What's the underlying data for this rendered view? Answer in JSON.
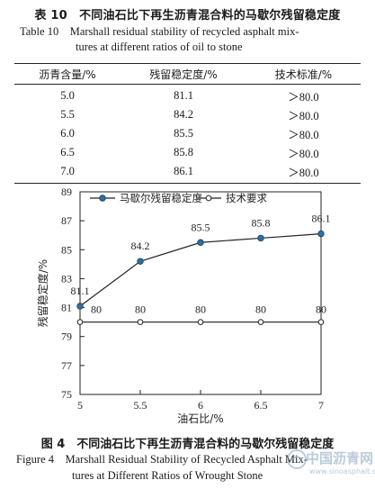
{
  "table": {
    "caption_cn": "表 10　不同油石比下再生沥青混合料的马歇尔残留稳定度",
    "caption_en_line1": "Table 10　Marshall residual stability of recycled asphalt mix-",
    "caption_en_line2": "tures at different ratios of oil to stone",
    "headers": [
      "沥青含量/%",
      "残留稳定度/%",
      "技术标准/%"
    ],
    "rows": [
      [
        "5.0",
        "81.1",
        "＞80.0"
      ],
      [
        "5.5",
        "84.2",
        "＞80.0"
      ],
      [
        "6.0",
        "85.5",
        "＞80.0"
      ],
      [
        "6.5",
        "85.8",
        "＞80.0"
      ],
      [
        "7.0",
        "86.1",
        "＞80.0"
      ]
    ]
  },
  "chart_data": {
    "type": "line",
    "x": [
      5,
      5.5,
      6,
      6.5,
      7
    ],
    "series": [
      {
        "name": "马歇尔残留稳定度",
        "values": [
          81.1,
          84.2,
          85.5,
          85.8,
          86.1
        ],
        "marker": "circle",
        "color": "#2f6f9f"
      },
      {
        "name": "技术要求",
        "values": [
          80,
          80,
          80,
          80,
          80
        ],
        "marker": "open-circle",
        "color": "#333333"
      }
    ],
    "data_labels_main": [
      "81.1",
      "84.2",
      "85.5",
      "85.8",
      "86.1"
    ],
    "data_labels_req": [
      "80",
      "80",
      "80",
      "80",
      "80"
    ],
    "xticks": [
      "5",
      "5.5",
      "6",
      "6.5",
      "7"
    ],
    "yticks": [
      "75",
      "77",
      "79",
      "81",
      "83",
      "85",
      "87",
      "89"
    ],
    "xlim": [
      5,
      7
    ],
    "ylim": [
      75,
      89
    ],
    "xlabel": "油石比/%",
    "ylabel": "残留稳定度/%",
    "legend_position": "top-left",
    "grid": false
  },
  "figure": {
    "caption_cn": "图 4　不同油石比下再生沥青混合料的马歇尔残留稳定度",
    "caption_en_line1": "Figure 4　Marshall Residual Stability of Recycled Asphalt Mix-",
    "caption_en_line2": "tures at Different Ratios of Wrought Stone"
  },
  "watermark": {
    "text": "中国沥青网",
    "url": "www.sinoasphalt.com"
  }
}
